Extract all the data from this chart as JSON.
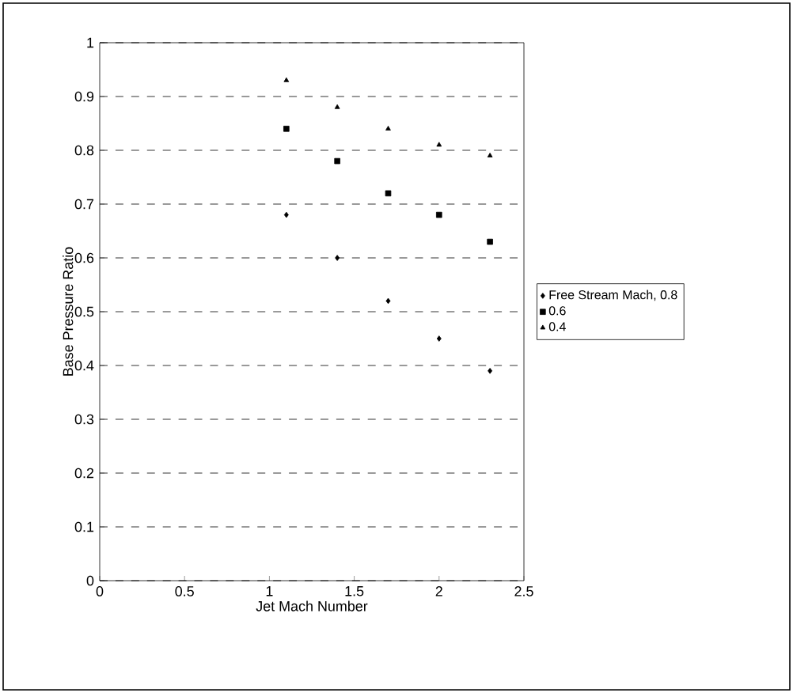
{
  "chart_data": {
    "type": "scatter",
    "xlabel": "Jet Mach Number",
    "ylabel": "Base Pressure Ratio",
    "x": [
      1.1,
      1.4,
      1.7,
      2.0,
      2.3
    ],
    "series": [
      {
        "name": "Free Stream Mach, 0.8",
        "color": "#000000",
        "marker": "diamond",
        "values": [
          0.68,
          0.6,
          0.52,
          0.45,
          0.39
        ]
      },
      {
        "name": "0.6",
        "color": "#000000",
        "marker": "square",
        "values": [
          0.84,
          0.78,
          0.72,
          0.68,
          0.63
        ]
      },
      {
        "name": "0.4",
        "color": "#000000",
        "marker": "triangle",
        "values": [
          0.93,
          0.88,
          0.84,
          0.81,
          0.79
        ]
      }
    ],
    "xlim": [
      0,
      2.5
    ],
    "xticks": [
      0,
      0.5,
      1,
      1.5,
      2,
      2.5
    ],
    "ylim": [
      0,
      1
    ],
    "yticks": [
      0,
      0.1,
      0.2,
      0.3,
      0.4,
      0.5,
      0.6,
      0.7,
      0.8,
      0.9,
      1
    ],
    "grid": "y",
    "legend": "right"
  }
}
